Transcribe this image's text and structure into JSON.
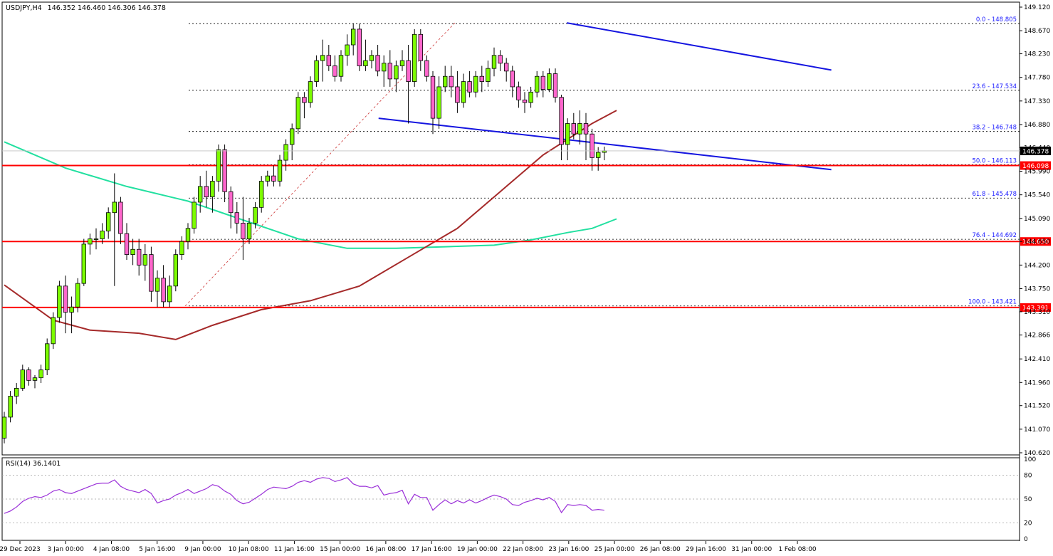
{
  "header": {
    "symbol": "USDJPY,H4",
    "ohlc": "146.352 146.460 146.306 146.378"
  },
  "rsi_header": "RSI(14) 36.1401",
  "chart_data": {
    "type": "candlestick",
    "symbol": "USDJPY",
    "timeframe": "H4",
    "price_axis": {
      "min": 140.62,
      "max": 149.12,
      "ticks": [
        "149.120",
        "148.670",
        "148.230",
        "147.780",
        "147.330",
        "146.880",
        "146.440",
        "145.990",
        "145.540",
        "145.090",
        "144.650",
        "144.200",
        "143.750",
        "143.310",
        "142.866",
        "142.410",
        "141.960",
        "141.520",
        "141.070",
        "140.620"
      ]
    },
    "time_axis": {
      "ticks": [
        "29 Dec 2023",
        "3 Jan 00:00",
        "4 Jan 08:00",
        "5 Jan 16:00",
        "9 Jan 00:00",
        "10 Jan 08:00",
        "11 Jan 16:00",
        "15 Jan 00:00",
        "16 Jan 08:00",
        "17 Jan 16:00",
        "19 Jan 00:00",
        "22 Jan 08:00",
        "23 Jan 16:00",
        "25 Jan 00:00",
        "26 Jan 08:00",
        "29 Jan 16:00",
        "31 Jan 00:00",
        "1 Feb 08:00"
      ]
    },
    "current_price": {
      "label": "146.378",
      "value": 146.378
    },
    "horizontal_levels": [
      {
        "label": "146.098",
        "value": 146.098,
        "color": "#ff0000"
      },
      {
        "label": "144.650",
        "value": 144.65,
        "color": "#ff0000"
      },
      {
        "label": "143.391",
        "value": 143.391,
        "color": "#ff0000"
      }
    ],
    "fibonacci": [
      {
        "label": "0.0 - 148.805",
        "value": 148.805
      },
      {
        "label": "23.6 - 147.534",
        "value": 147.534
      },
      {
        "label": "38.2 - 146.748",
        "value": 146.748
      },
      {
        "label": "50.0 - 146.113",
        "value": 146.113
      },
      {
        "label": "61.8 - 145.478",
        "value": 145.478
      },
      {
        "label": "76.4 - 144.692",
        "value": 144.692
      },
      {
        "label": "100.0 - 143.421",
        "value": 143.421
      }
    ],
    "channel": {
      "color": "#1515e0",
      "upper": [
        [
          0.555,
          148.82
        ],
        [
          0.815,
          147.92
        ]
      ],
      "lower": [
        [
          0.37,
          147.0
        ],
        [
          0.815,
          146.02
        ]
      ]
    },
    "fib_trend_line": {
      "from": [
        0.18,
        143.42
      ],
      "to": [
        0.445,
        148.82
      ],
      "color": "#cc3333"
    },
    "candles": [
      [
        140.9,
        141.4,
        140.8,
        141.3
      ],
      [
        141.3,
        141.8,
        141.2,
        141.7
      ],
      [
        141.7,
        141.95,
        141.55,
        141.85
      ],
      [
        141.85,
        142.3,
        141.8,
        142.2
      ],
      [
        142.2,
        142.25,
        141.9,
        142.0
      ],
      [
        142.0,
        142.1,
        141.85,
        142.05
      ],
      [
        142.05,
        142.3,
        141.95,
        142.2
      ],
      [
        142.2,
        142.8,
        142.1,
        142.7
      ],
      [
        142.7,
        143.3,
        142.6,
        143.2
      ],
      [
        143.2,
        143.9,
        143.1,
        143.8
      ],
      [
        143.8,
        144.0,
        142.9,
        143.3
      ],
      [
        143.3,
        143.6,
        142.9,
        143.4
      ],
      [
        143.4,
        143.95,
        143.3,
        143.85
      ],
      [
        143.85,
        144.7,
        143.8,
        144.6
      ],
      [
        144.6,
        144.8,
        144.4,
        144.7
      ],
      [
        144.7,
        144.9,
        144.5,
        144.7
      ],
      [
        144.7,
        145.0,
        144.6,
        144.85
      ],
      [
        144.85,
        145.3,
        144.7,
        145.2
      ],
      [
        145.2,
        145.95,
        143.8,
        145.4
      ],
      [
        145.4,
        145.5,
        144.6,
        144.8
      ],
      [
        144.8,
        145.0,
        144.3,
        144.4
      ],
      [
        144.4,
        144.7,
        144.2,
        144.5
      ],
      [
        144.5,
        144.7,
        144.0,
        144.2
      ],
      [
        144.2,
        144.6,
        143.9,
        144.4
      ],
      [
        144.4,
        144.55,
        143.5,
        143.7
      ],
      [
        143.7,
        144.1,
        143.4,
        143.95
      ],
      [
        143.95,
        144.2,
        143.4,
        143.5
      ],
      [
        143.5,
        144.0,
        143.4,
        143.8
      ],
      [
        143.8,
        144.5,
        143.7,
        144.4
      ],
      [
        144.4,
        144.75,
        144.3,
        144.65
      ],
      [
        144.65,
        145.0,
        144.5,
        144.9
      ],
      [
        144.9,
        145.5,
        144.8,
        145.4
      ],
      [
        145.4,
        145.9,
        145.2,
        145.7
      ],
      [
        145.7,
        146.0,
        145.3,
        145.5
      ],
      [
        145.5,
        145.9,
        145.2,
        145.8
      ],
      [
        145.8,
        146.5,
        145.6,
        146.4
      ],
      [
        146.4,
        146.5,
        145.4,
        145.6
      ],
      [
        145.6,
        145.7,
        144.9,
        145.2
      ],
      [
        145.2,
        145.4,
        144.8,
        145.0
      ],
      [
        145.0,
        145.5,
        144.3,
        144.7
      ],
      [
        144.7,
        145.1,
        144.6,
        145.0
      ],
      [
        145.0,
        145.4,
        144.9,
        145.3
      ],
      [
        145.3,
        145.9,
        145.2,
        145.8
      ],
      [
        145.8,
        146.0,
        145.7,
        145.9
      ],
      [
        145.9,
        146.1,
        145.7,
        145.8
      ],
      [
        145.8,
        146.3,
        145.7,
        146.2
      ],
      [
        146.2,
        146.6,
        146.0,
        146.5
      ],
      [
        146.5,
        146.9,
        146.2,
        146.8
      ],
      [
        146.8,
        147.5,
        146.7,
        147.4
      ],
      [
        147.4,
        147.5,
        147.0,
        147.3
      ],
      [
        147.3,
        147.8,
        147.2,
        147.7
      ],
      [
        147.7,
        148.2,
        147.6,
        148.1
      ],
      [
        148.1,
        148.5,
        147.7,
        148.2
      ],
      [
        148.2,
        148.4,
        147.9,
        148.0
      ],
      [
        148.0,
        148.2,
        147.7,
        147.8
      ],
      [
        147.8,
        148.3,
        147.7,
        148.2
      ],
      [
        148.2,
        148.6,
        148.0,
        148.4
      ],
      [
        148.4,
        148.81,
        148.2,
        148.7
      ],
      [
        148.7,
        148.8,
        147.9,
        148.0
      ],
      [
        148.0,
        148.5,
        147.9,
        148.1
      ],
      [
        148.1,
        148.3,
        147.95,
        148.2
      ],
      [
        148.2,
        148.4,
        147.8,
        147.9
      ],
      [
        147.9,
        148.2,
        147.6,
        148.05
      ],
      [
        148.05,
        148.3,
        147.6,
        147.75
      ],
      [
        147.75,
        148.1,
        147.5,
        148.0
      ],
      [
        148.0,
        148.3,
        147.9,
        148.1
      ],
      [
        148.1,
        148.4,
        146.9,
        147.7
      ],
      [
        147.7,
        148.7,
        147.6,
        148.6
      ],
      [
        148.6,
        148.7,
        147.9,
        148.1
      ],
      [
        148.1,
        148.2,
        147.7,
        147.8
      ],
      [
        147.8,
        147.9,
        146.7,
        147.0
      ],
      [
        147.0,
        147.8,
        146.8,
        147.6
      ],
      [
        147.6,
        148.0,
        147.5,
        147.8
      ],
      [
        147.8,
        148.0,
        147.4,
        147.6
      ],
      [
        147.6,
        147.9,
        147.1,
        147.3
      ],
      [
        147.3,
        147.85,
        147.2,
        147.7
      ],
      [
        147.7,
        147.9,
        147.4,
        147.5
      ],
      [
        147.5,
        147.9,
        147.4,
        147.8
      ],
      [
        147.8,
        148.0,
        147.5,
        147.7
      ],
      [
        147.7,
        148.1,
        147.6,
        147.95
      ],
      [
        147.95,
        148.35,
        147.8,
        148.2
      ],
      [
        148.2,
        148.3,
        147.9,
        148.05
      ],
      [
        148.05,
        148.15,
        147.7,
        147.9
      ],
      [
        147.9,
        148.0,
        147.4,
        147.6
      ],
      [
        147.6,
        147.7,
        147.2,
        147.35
      ],
      [
        147.35,
        147.5,
        147.1,
        147.3
      ],
      [
        147.3,
        147.6,
        147.2,
        147.5
      ],
      [
        147.5,
        147.9,
        147.4,
        147.8
      ],
      [
        147.8,
        147.9,
        147.4,
        147.55
      ],
      [
        147.55,
        147.95,
        147.5,
        147.85
      ],
      [
        147.85,
        147.95,
        147.3,
        147.4
      ],
      [
        147.4,
        147.45,
        146.2,
        146.5
      ],
      [
        146.5,
        147.0,
        146.2,
        146.9
      ],
      [
        146.9,
        147.1,
        146.6,
        146.7
      ],
      [
        146.7,
        147.15,
        146.5,
        146.9
      ],
      [
        146.9,
        147.1,
        146.2,
        146.7
      ],
      [
        146.7,
        146.8,
        146.0,
        146.25
      ],
      [
        146.25,
        146.45,
        146.0,
        146.35
      ],
      [
        146.35,
        146.46,
        146.2,
        146.38
      ]
    ],
    "ema_fast": [
      [
        0,
        146.55
      ],
      [
        10,
        146.05
      ],
      [
        20,
        145.7
      ],
      [
        30,
        145.42
      ],
      [
        40,
        145.02
      ],
      [
        48,
        144.7
      ],
      [
        56,
        144.52
      ],
      [
        64,
        144.52
      ],
      [
        72,
        144.55
      ],
      [
        80,
        144.58
      ],
      [
        86,
        144.68
      ],
      [
        92,
        144.82
      ],
      [
        96,
        144.9
      ],
      [
        100,
        145.08
      ]
    ],
    "ema_slow": [
      [
        0,
        143.82
      ],
      [
        8,
        143.15
      ],
      [
        14,
        142.96
      ],
      [
        22,
        142.9
      ],
      [
        28,
        142.78
      ],
      [
        34,
        143.05
      ],
      [
        42,
        143.35
      ],
      [
        50,
        143.52
      ],
      [
        58,
        143.8
      ],
      [
        66,
        144.35
      ],
      [
        74,
        144.9
      ],
      [
        80,
        145.5
      ],
      [
        84,
        145.9
      ],
      [
        88,
        146.3
      ],
      [
        92,
        146.6
      ],
      [
        96,
        146.9
      ],
      [
        100,
        147.15
      ]
    ],
    "rsi": {
      "levels": [
        80,
        50,
        20
      ],
      "ticks": [
        "100",
        "80",
        "50",
        "20",
        "0"
      ],
      "values": [
        32,
        35,
        40,
        47,
        51,
        53,
        52,
        55,
        60,
        62,
        58,
        57,
        60,
        63,
        66,
        69,
        70,
        70,
        74,
        66,
        62,
        60,
        58,
        62,
        57,
        45,
        48,
        50,
        55,
        58,
        62,
        57,
        60,
        63,
        68,
        66,
        60,
        56,
        48,
        44,
        46,
        51,
        56,
        62,
        65,
        64,
        63,
        66,
        71,
        73,
        71,
        75,
        77,
        76,
        72,
        74,
        77,
        69,
        66,
        66,
        64,
        67,
        55,
        57,
        58,
        61,
        44,
        56,
        52,
        52,
        36,
        43,
        49,
        44,
        48,
        45,
        49,
        45,
        48,
        52,
        55,
        53,
        50,
        43,
        42,
        46,
        48,
        51,
        49,
        52,
        47,
        33,
        43,
        42,
        43,
        42,
        36,
        37,
        36
      ]
    }
  }
}
